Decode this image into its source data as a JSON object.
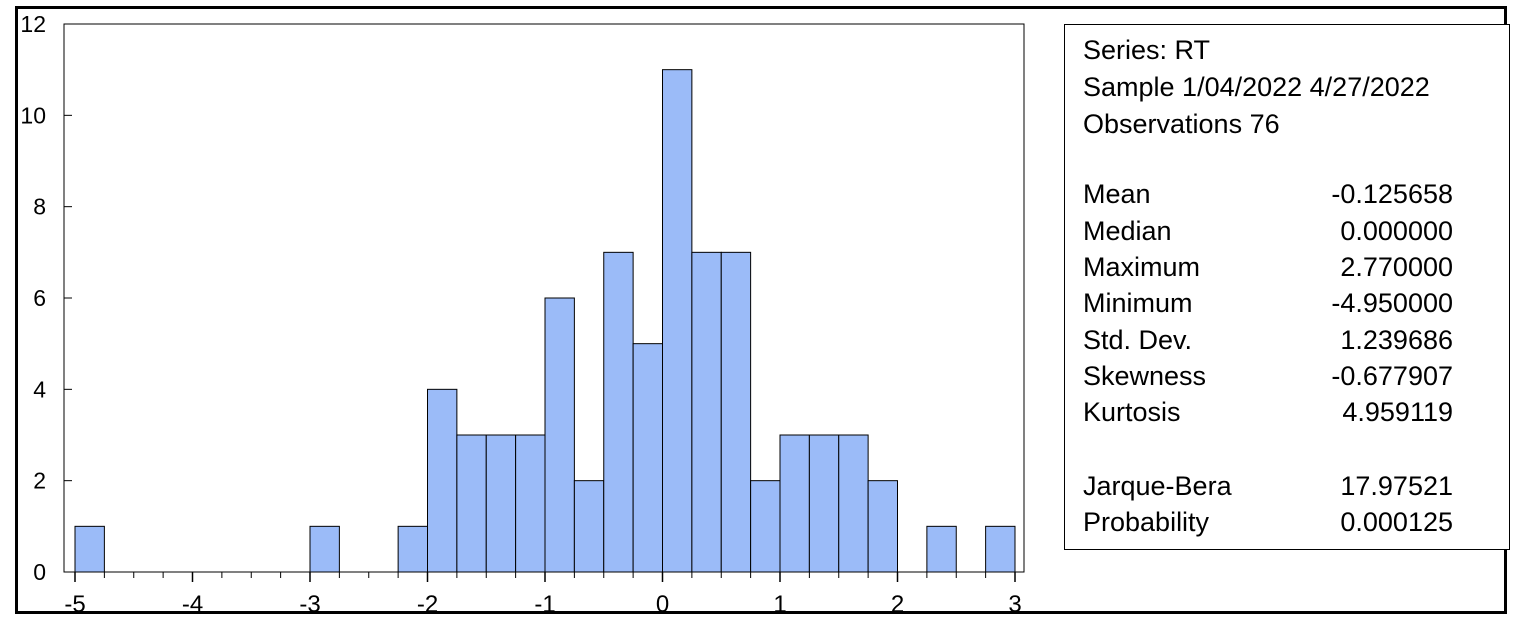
{
  "chart_data": {
    "type": "bar",
    "bin_width": 0.25,
    "bins": [
      {
        "start": -5.0,
        "count": 1
      },
      {
        "start": -3.0,
        "count": 1
      },
      {
        "start": -2.25,
        "count": 1
      },
      {
        "start": -2.0,
        "count": 4
      },
      {
        "start": -1.75,
        "count": 3
      },
      {
        "start": -1.5,
        "count": 3
      },
      {
        "start": -1.25,
        "count": 3
      },
      {
        "start": -1.0,
        "count": 6
      },
      {
        "start": -0.75,
        "count": 2
      },
      {
        "start": -0.5,
        "count": 7
      },
      {
        "start": -0.25,
        "count": 5
      },
      {
        "start": 0.0,
        "count": 11
      },
      {
        "start": 0.25,
        "count": 7
      },
      {
        "start": 0.5,
        "count": 7
      },
      {
        "start": 0.75,
        "count": 2
      },
      {
        "start": 1.0,
        "count": 3
      },
      {
        "start": 1.25,
        "count": 3
      },
      {
        "start": 1.5,
        "count": 3
      },
      {
        "start": 1.75,
        "count": 2
      },
      {
        "start": 2.25,
        "count": 1
      },
      {
        "start": 2.75,
        "count": 1
      }
    ],
    "xlim": [
      -5,
      3
    ],
    "ylim": [
      0,
      12
    ],
    "x_ticks": [
      "-5",
      "-4",
      "-3",
      "-2",
      "-1",
      "0",
      "1",
      "2",
      "3"
    ],
    "y_ticks": [
      "0",
      "2",
      "4",
      "6",
      "8",
      "10",
      "12"
    ],
    "bar_color": "#9bbbf8",
    "title": "",
    "xlabel": "",
    "ylabel": ""
  },
  "stats": {
    "series": "Series: RT",
    "sample": "Sample 1/04/2022 4/27/2022",
    "observations": "Observations 76",
    "rows": [
      {
        "label": "Mean",
        "value": "-0.125658"
      },
      {
        "label": "Median",
        "value": "0.000000"
      },
      {
        "label": "Maximum",
        "value": "2.770000"
      },
      {
        "label": "Minimum",
        "value": "-4.950000"
      },
      {
        "label": "Std. Dev.",
        "value": "1.239686"
      },
      {
        "label": "Skewness",
        "value": "-0.677907"
      },
      {
        "label": "Kurtosis",
        "value": "4.959119"
      },
      {
        "label": "Jarque-Bera",
        "value": "17.97521"
      },
      {
        "label": "Probability",
        "value": "0.000125"
      }
    ]
  }
}
